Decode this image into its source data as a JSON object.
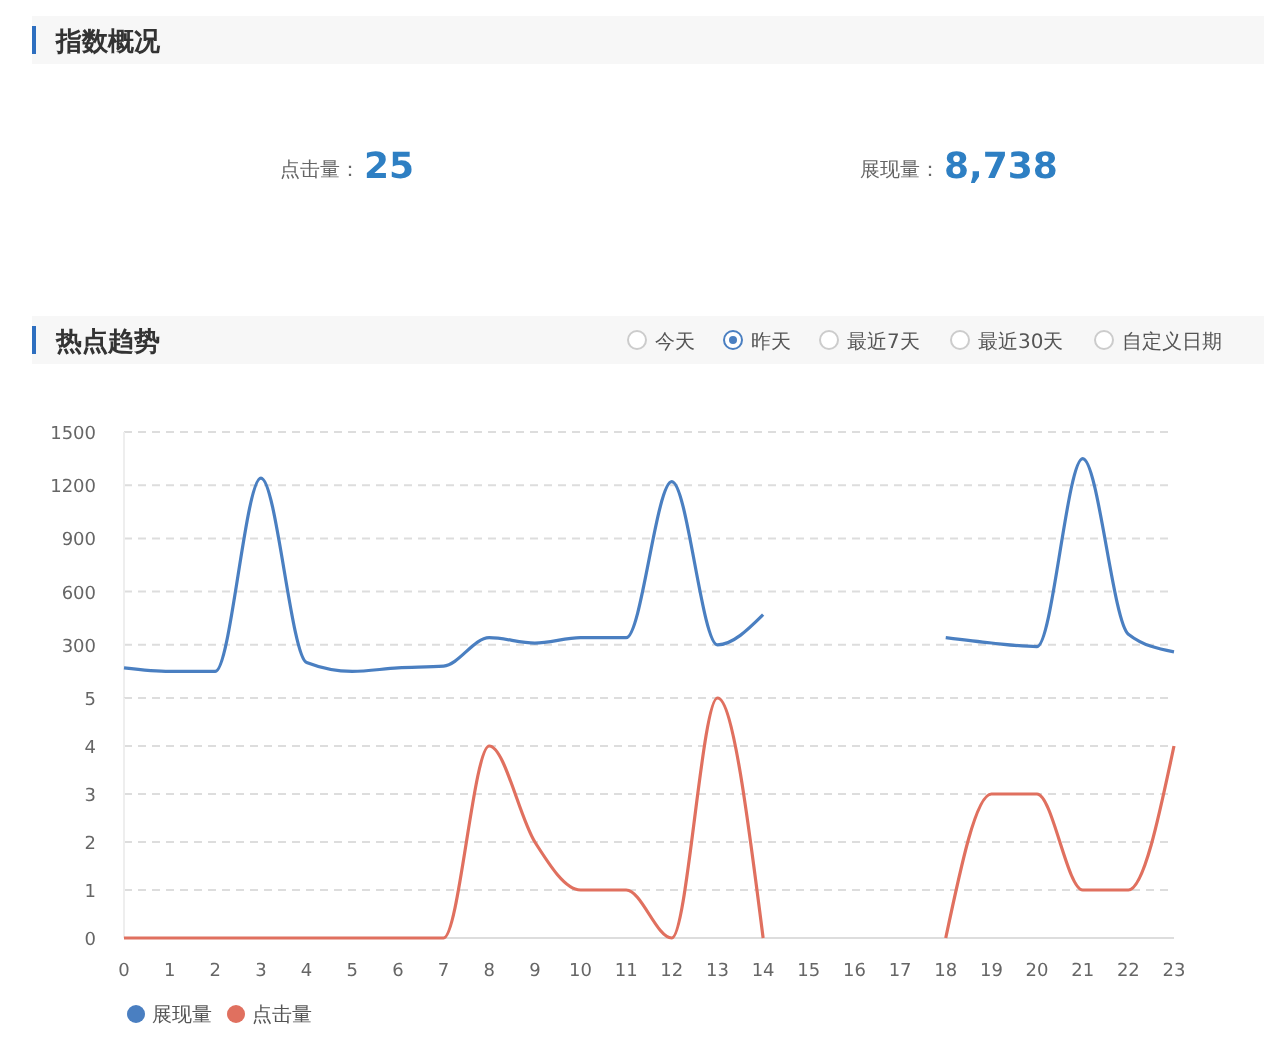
{
  "chart_data": [
    {
      "type": "other",
      "title": "指数概况",
      "annotations": [
        "点击量：",
        "25",
        "展现量：",
        "8,738"
      ],
      "color": "#2e7fc3"
    },
    {
      "type": "line",
      "title": "热点趋势",
      "annotations": [
        "今天",
        "昨天",
        "最近7天",
        "最近30天",
        "自定义日期"
      ],
      "x": [
        0,
        1,
        2,
        3,
        4,
        5,
        6,
        7,
        8,
        9,
        10,
        11,
        12,
        13,
        14,
        15,
        16,
        17,
        18,
        19,
        20,
        21,
        22,
        23
      ],
      "series": [
        {
          "name": "展现量",
          "color": "#4a7fc1",
          "values": [
            170,
            150,
            150,
            1240,
            200,
            150,
            170,
            180,
            340,
            310,
            340,
            340,
            1220,
            300,
            470,
            null,
            null,
            null,
            340,
            310,
            290,
            1350,
            360,
            260
          ]
        }
      ],
      "xlim": [
        0,
        23
      ],
      "ylim": [
        0,
        1500
      ],
      "yticks": [
        300,
        600,
        900,
        1200,
        1500
      ],
      "tick_labels": "y",
      "grid": "y",
      "legend": "bottom left",
      "marker": "none",
      "line_style": "solid"
    },
    {
      "type": "line",
      "x": [
        0,
        1,
        2,
        3,
        4,
        5,
        6,
        7,
        8,
        9,
        10,
        11,
        12,
        13,
        14,
        15,
        16,
        17,
        18,
        19,
        20,
        21,
        22,
        23
      ],
      "series": [
        {
          "name": "点击量",
          "color": "#e0705f",
          "values": [
            0,
            0,
            0,
            0,
            0,
            0,
            0,
            0,
            4,
            2,
            1,
            1,
            0,
            5,
            0,
            null,
            null,
            null,
            0,
            3,
            3,
            1,
            1,
            4
          ]
        }
      ],
      "xlim": [
        0,
        23
      ],
      "xticks": [
        0,
        1,
        2,
        3,
        4,
        5,
        6,
        7,
        8,
        9,
        10,
        11,
        12,
        13,
        14,
        15,
        16,
        17,
        18,
        19,
        20,
        21,
        22,
        23
      ],
      "ylim": [
        0,
        5
      ],
      "yticks": [
        0,
        1,
        2,
        3,
        4,
        5
      ],
      "grid": "y",
      "legend": "bottom left",
      "marker": "none",
      "line_style": "solid"
    }
  ]
}
